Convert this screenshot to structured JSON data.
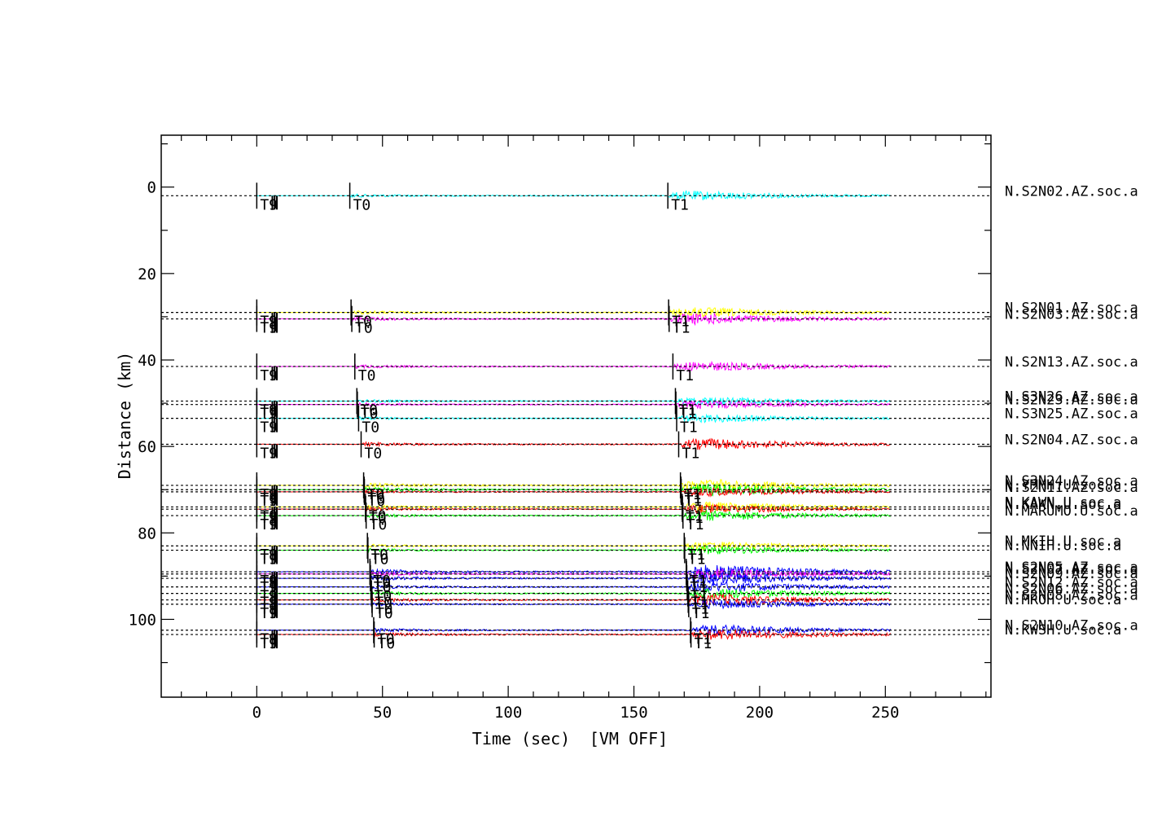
{
  "chart_data": {
    "type": "seismic record section",
    "xlabel": "Time (sec)",
    "xlabel_note": "[VM OFF]",
    "ylabel": "Distance (km)",
    "xlim": [
      -38,
      292
    ],
    "ylim": [
      118,
      -12
    ],
    "y_inverted": true,
    "x_ticks": [
      0,
      50,
      100,
      150,
      200,
      250
    ],
    "y_ticks": [
      0,
      20,
      40,
      60,
      80,
      100
    ],
    "grid": false,
    "trace_end_sec": 252,
    "pick_labels": {
      "tn": "T9",
      "t0": "T0",
      "t1": "T1"
    },
    "traces": [
      {
        "name": "N.S2N02.AZ.soc.a",
        "distance": 2.0,
        "color": "#00ffff",
        "t0": 37.0,
        "t1": 163.5,
        "amp": 5.5
      },
      {
        "name": "N.S2N01.AZ.soc.a",
        "distance": 29.0,
        "color": "#ffff00",
        "t0": 37.5,
        "t1": 163.8,
        "amp": 6.0
      },
      {
        "name": "N.S2N03.AZ.soc.a",
        "distance": 30.5,
        "color": "#ff00ff",
        "t0": 37.8,
        "t1": 164.0,
        "amp": 6.5
      },
      {
        "name": "N.S2N13.AZ.soc.a",
        "distance": 41.5,
        "color": "#ff00ff",
        "t0": 39.0,
        "t1": 165.5,
        "amp": 5.5
      },
      {
        "name": "N.S3N26.AZ.soc.a",
        "distance": 49.5,
        "color": "#00ffff",
        "t0": 39.8,
        "t1": 166.5,
        "amp": 5.0
      },
      {
        "name": "N.S2N23.AZ.soc.a",
        "distance": 50.3,
        "color": "#ff00ff",
        "t0": 40.0,
        "t1": 166.7,
        "amp": 5.0
      },
      {
        "name": "N.S3N25.AZ.soc.a",
        "distance": 53.5,
        "color": "#00ffff",
        "t0": 40.5,
        "t1": 167.0,
        "amp": 5.0
      },
      {
        "name": "N.S2N04.AZ.soc.a",
        "distance": 59.5,
        "color": "#ff0000",
        "t0": 41.5,
        "t1": 167.8,
        "amp": 6.5
      },
      {
        "name": "N.S3N24.AZ.soc.a",
        "distance": 69.0,
        "color": "#ffff00",
        "t0": 42.5,
        "t1": 168.5,
        "amp": 7.0
      },
      {
        "name": "N.YMMH.U.soc.a",
        "distance": 70.0,
        "color": "#00ff00",
        "t0": 42.7,
        "t1": 168.7,
        "amp": 7.0
      },
      {
        "name": "N.S2N11.AZ.soc.a",
        "distance": 70.5,
        "color": "#ff0000",
        "t0": 42.8,
        "t1": 168.8,
        "amp": 5.0
      },
      {
        "name": "N.KAWN.U.soc.a",
        "distance": 74.0,
        "color": "#ffff00",
        "t0": 43.2,
        "t1": 169.2,
        "amp": 6.0
      },
      {
        "name": "N.KAKN.U.soc.a",
        "distance": 74.5,
        "color": "#ff0000",
        "t0": 43.3,
        "t1": 169.3,
        "amp": 5.0
      },
      {
        "name": "N.MARUMO.U.soc.a",
        "distance": 76.0,
        "color": "#00ff00",
        "t0": 43.5,
        "t1": 169.5,
        "amp": 6.0
      },
      {
        "name": "N.MKIH.U.soc.a",
        "distance": 83.0,
        "color": "#ffff00",
        "t0": 44.0,
        "t1": 170.0,
        "amp": 5.0
      },
      {
        "name": "N.NNIH.U.soc.a",
        "distance": 84.0,
        "color": "#00ff00",
        "t0": 44.2,
        "t1": 170.2,
        "amp": 5.0
      },
      {
        "name": "N.S2N05.AZ.soc.a",
        "distance": 89.0,
        "color": "#0000ff",
        "t0": 45.0,
        "t1": 170.8,
        "amp": 8.0
      },
      {
        "name": "N.S2N07.AZ.soc.a",
        "distance": 89.5,
        "color": "#ff00ff",
        "t0": 45.1,
        "t1": 170.9,
        "amp": 6.0
      },
      {
        "name": "N.S2N09.AZ.soc.a",
        "distance": 90.5,
        "color": "#0000ff",
        "t0": 45.2,
        "t1": 171.0,
        "amp": 7.0
      },
      {
        "name": "N.S2N12.AZ.soc.a",
        "distance": 92.5,
        "color": "#0000ff",
        "t0": 45.4,
        "t1": 171.2,
        "amp": 6.0
      },
      {
        "name": "N.S2N06.AZ.soc.a",
        "distance": 94.0,
        "color": "#00ff00",
        "t0": 45.6,
        "t1": 171.4,
        "amp": 6.0
      },
      {
        "name": "N.S2N08.AZ.soc.a",
        "distance": 95.5,
        "color": "#ff0000",
        "t0": 45.8,
        "t1": 171.6,
        "amp": 7.0
      },
      {
        "name": "N.MROH.U.soc.a",
        "distance": 96.5,
        "color": "#0000ff",
        "t0": 45.9,
        "t1": 171.8,
        "amp": 5.0
      },
      {
        "name": "N.S2N10.AZ.soc.a",
        "distance": 102.5,
        "color": "#0000ff",
        "t0": 46.5,
        "t1": 172.5,
        "amp": 6.0
      },
      {
        "name": "N.KWSH.U.soc.a",
        "distance": 103.5,
        "color": "#ff0000",
        "t0": 46.7,
        "t1": 172.7,
        "amp": 6.5
      }
    ]
  }
}
